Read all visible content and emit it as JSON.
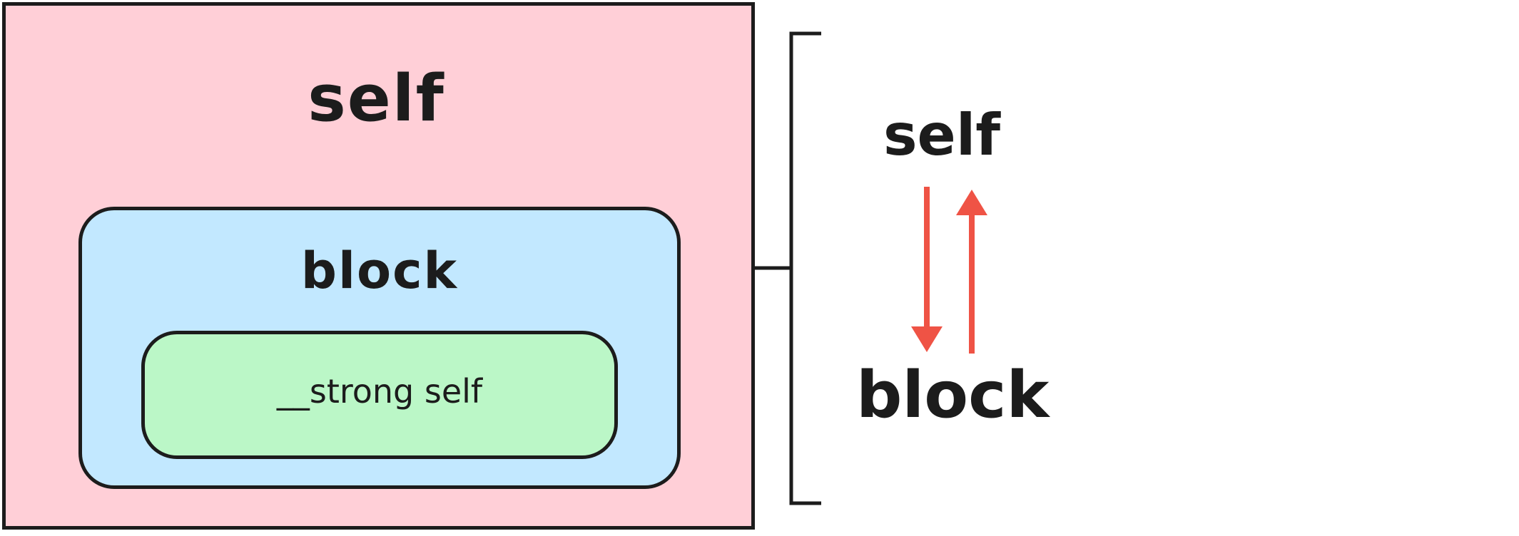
{
  "self_box": {
    "title": "self",
    "color": "#FFCFD7"
  },
  "block_box": {
    "title": "block",
    "color": "#C2E8FF"
  },
  "strong_box": {
    "label": "__strong self",
    "color": "#BBF7C7"
  },
  "relation": {
    "top_label": "self",
    "bottom_label": "block",
    "arrow_color": "#EF5345"
  },
  "outline_color": "#1C1C1C"
}
